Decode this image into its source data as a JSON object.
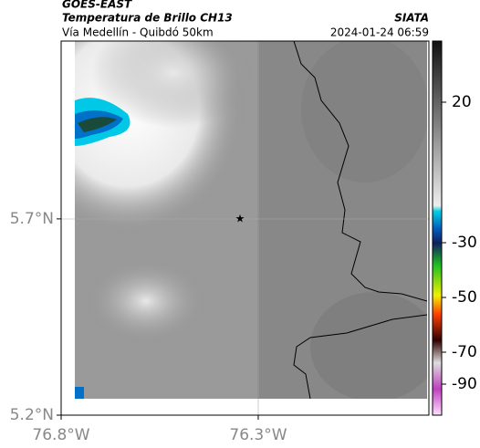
{
  "header": {
    "source": "GOES-EAST",
    "product": "Temperatura de Brillo CH13",
    "region": "Vía Medellín - Quibdó 50km",
    "agency": "SIATA",
    "datetime": "2024-01-24 06:59"
  },
  "map": {
    "lat_lim": [
      5.2,
      6.153
    ],
    "lon_lim": [
      -76.8,
      -75.867
    ],
    "lat_ticks": [
      {
        "value": 5.7,
        "label": "5.7°N"
      },
      {
        "value": 5.2,
        "label": "5.2°N"
      }
    ],
    "lon_ticks": [
      {
        "value": -76.8,
        "label": "76.8°W"
      },
      {
        "value": -76.3,
        "label": "76.3°W"
      }
    ],
    "colorbar_ticks": [
      20,
      -30,
      -50,
      -70,
      -90
    ]
  }
}
